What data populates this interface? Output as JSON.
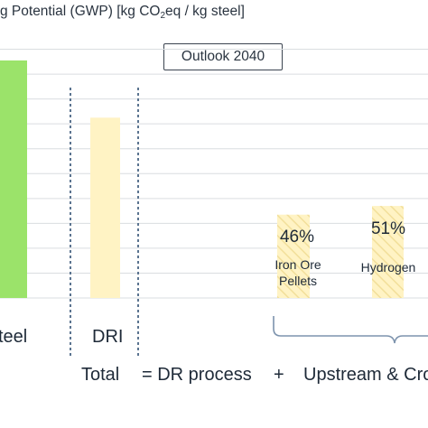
{
  "title_prefix": "g Potential (GWP) [kg CO",
  "title_subscript": "2",
  "title_suffix": "eq / kg steel]",
  "outlook_label": "Outlook 2040",
  "colors": {
    "steel_bar": "#9be36a",
    "dri_bar": "#fff3c4",
    "hatch_bar": "#fff3c4",
    "hatch_stripe": "#f2df9a",
    "grid": "#dadde0",
    "divider": "#5b7490",
    "brace": "#7d93ad"
  },
  "chart_data": {
    "type": "bar",
    "title": "g Potential (GWP) [kg CO2eq / kg steel]",
    "categories": [
      "teel",
      "DRI",
      "Iron Ore Pellets",
      "Hydrogen"
    ],
    "values": [
      1.91,
      1.45,
      0.67,
      0.74
    ],
    "data_labels": [
      "",
      "",
      "46%",
      "51%"
    ],
    "ylim": [
      0,
      2.2
    ],
    "grid": true,
    "gridline_values": [
      0.2,
      0.4,
      0.6,
      0.8,
      1.0,
      1.2,
      1.4,
      1.6,
      1.8,
      2.0
    ]
  },
  "footer": {
    "total": "Total",
    "equals": "= DR process",
    "plus": "+",
    "upstream": "Upstream & Cro"
  }
}
